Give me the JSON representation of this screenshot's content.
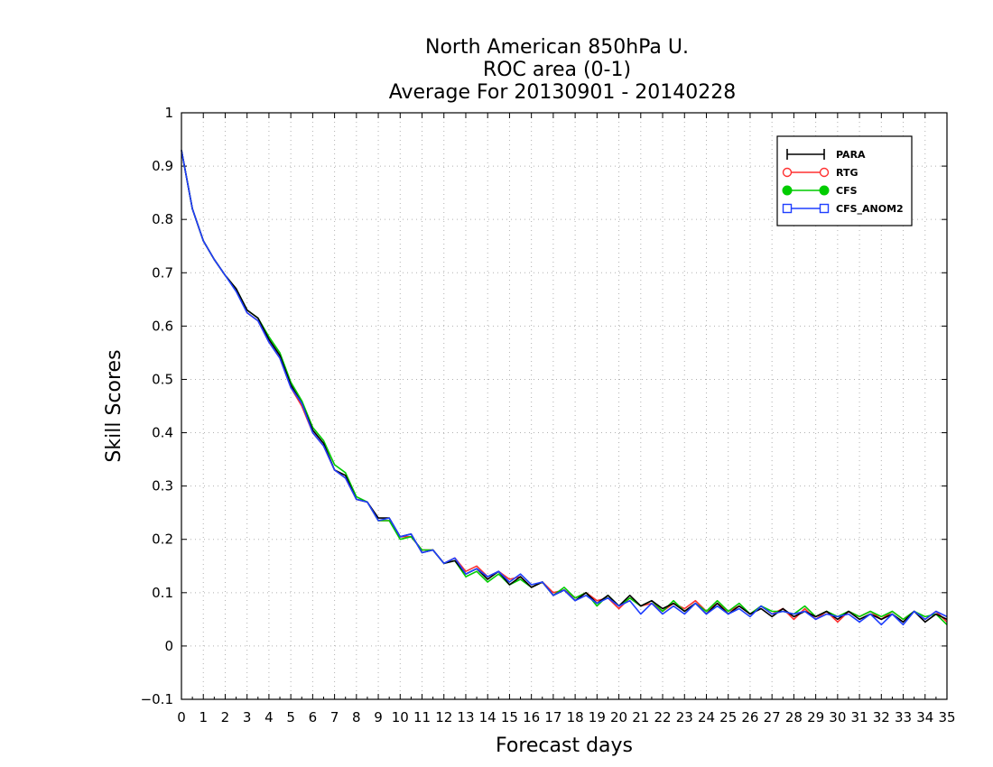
{
  "chart_data": {
    "type": "line",
    "title": [
      "North American 850hPa U.",
      "ROC area (0-1)",
      "Average For 20130901 - 20140228"
    ],
    "xlabel": "Forecast days",
    "ylabel": "Skill Scores",
    "xlim": [
      0,
      35
    ],
    "ylim": [
      -0.1,
      1
    ],
    "xticks": [
      0,
      1,
      2,
      3,
      4,
      5,
      6,
      7,
      8,
      9,
      10,
      11,
      12,
      13,
      14,
      15,
      16,
      17,
      18,
      19,
      20,
      21,
      22,
      23,
      24,
      25,
      26,
      27,
      28,
      29,
      30,
      31,
      32,
      33,
      34,
      35
    ],
    "yticks": [
      -0.1,
      0,
      0.1,
      0.2,
      0.3,
      0.4,
      0.5,
      0.6,
      0.7,
      0.8,
      0.9,
      1
    ],
    "ytick_labels": [
      "−0.1",
      "0",
      "0.1",
      "0.2",
      "0.3",
      "0.4",
      "0.5",
      "0.6",
      "0.7",
      "0.8",
      "0.9",
      "1"
    ],
    "grid": true,
    "legend_position": "top-right",
    "x": [
      0,
      0.5,
      1,
      1.5,
      2,
      2.5,
      3,
      3.5,
      4,
      4.5,
      5,
      5.5,
      6,
      6.5,
      7,
      7.5,
      8,
      8.5,
      9,
      9.5,
      10,
      10.5,
      11,
      11.5,
      12,
      12.5,
      13,
      13.5,
      14,
      14.5,
      15,
      15.5,
      16,
      16.5,
      17,
      17.5,
      18,
      18.5,
      19,
      19.5,
      20,
      20.5,
      21,
      21.5,
      22,
      22.5,
      23,
      23.5,
      24,
      24.5,
      25,
      25.5,
      26,
      26.5,
      27,
      27.5,
      28,
      28.5,
      29,
      29.5,
      30,
      30.5,
      31,
      31.5,
      32,
      32.5,
      33,
      33.5,
      34,
      34.5,
      35
    ],
    "series": [
      {
        "name": "PARA",
        "color": "#000000",
        "marker": "plus",
        "values": [
          0.93,
          0.82,
          0.76,
          0.725,
          0.695,
          0.67,
          0.63,
          0.615,
          0.575,
          0.545,
          0.49,
          0.455,
          0.405,
          0.38,
          0.33,
          0.32,
          0.275,
          0.27,
          0.24,
          0.24,
          0.205,
          0.21,
          0.175,
          0.18,
          0.155,
          0.16,
          0.135,
          0.145,
          0.125,
          0.14,
          0.115,
          0.13,
          0.11,
          0.12,
          0.095,
          0.105,
          0.085,
          0.1,
          0.08,
          0.095,
          0.075,
          0.095,
          0.075,
          0.085,
          0.07,
          0.08,
          0.065,
          0.08,
          0.06,
          0.08,
          0.06,
          0.075,
          0.06,
          0.07,
          0.055,
          0.07,
          0.055,
          0.065,
          0.055,
          0.065,
          0.05,
          0.065,
          0.05,
          0.06,
          0.05,
          0.06,
          0.045,
          0.065,
          0.045,
          0.06,
          0.05
        ]
      },
      {
        "name": "RTG",
        "color": "#ff3030",
        "marker": "circle-open",
        "values": [
          0.93,
          0.82,
          0.76,
          0.725,
          0.695,
          0.67,
          0.625,
          0.61,
          0.57,
          0.54,
          0.485,
          0.45,
          0.4,
          0.375,
          0.33,
          0.315,
          0.275,
          0.27,
          0.235,
          0.235,
          0.205,
          0.205,
          0.18,
          0.18,
          0.155,
          0.165,
          0.14,
          0.15,
          0.13,
          0.14,
          0.125,
          0.13,
          0.11,
          0.12,
          0.1,
          0.105,
          0.09,
          0.1,
          0.085,
          0.09,
          0.07,
          0.09,
          0.075,
          0.08,
          0.065,
          0.08,
          0.07,
          0.085,
          0.065,
          0.08,
          0.065,
          0.075,
          0.06,
          0.075,
          0.06,
          0.07,
          0.05,
          0.07,
          0.05,
          0.065,
          0.045,
          0.065,
          0.055,
          0.065,
          0.05,
          0.065,
          0.05,
          0.065,
          0.05,
          0.065,
          0.045
        ]
      },
      {
        "name": "CFS",
        "color": "#00cc00",
        "marker": "circle-filled",
        "values": [
          0.93,
          0.82,
          0.76,
          0.725,
          0.695,
          0.67,
          0.63,
          0.615,
          0.58,
          0.55,
          0.495,
          0.46,
          0.41,
          0.385,
          0.34,
          0.325,
          0.28,
          0.27,
          0.235,
          0.235,
          0.2,
          0.205,
          0.18,
          0.18,
          0.155,
          0.16,
          0.13,
          0.14,
          0.12,
          0.135,
          0.115,
          0.125,
          0.11,
          0.12,
          0.095,
          0.11,
          0.09,
          0.1,
          0.075,
          0.095,
          0.075,
          0.09,
          0.075,
          0.085,
          0.065,
          0.085,
          0.065,
          0.08,
          0.065,
          0.085,
          0.065,
          0.08,
          0.06,
          0.075,
          0.065,
          0.065,
          0.06,
          0.075,
          0.055,
          0.065,
          0.055,
          0.065,
          0.055,
          0.065,
          0.055,
          0.065,
          0.05,
          0.065,
          0.055,
          0.06,
          0.04
        ]
      },
      {
        "name": "CFS_ANOM2",
        "color": "#1f3fff",
        "marker": "square-open",
        "values": [
          0.93,
          0.82,
          0.76,
          0.725,
          0.695,
          0.665,
          0.625,
          0.61,
          0.57,
          0.54,
          0.485,
          0.455,
          0.4,
          0.375,
          0.33,
          0.315,
          0.275,
          0.27,
          0.235,
          0.24,
          0.205,
          0.21,
          0.175,
          0.18,
          0.155,
          0.165,
          0.135,
          0.145,
          0.13,
          0.14,
          0.12,
          0.135,
          0.115,
          0.12,
          0.095,
          0.105,
          0.085,
          0.095,
          0.08,
          0.09,
          0.075,
          0.085,
          0.06,
          0.08,
          0.06,
          0.075,
          0.06,
          0.08,
          0.06,
          0.075,
          0.06,
          0.07,
          0.055,
          0.075,
          0.06,
          0.065,
          0.06,
          0.065,
          0.05,
          0.06,
          0.055,
          0.06,
          0.045,
          0.06,
          0.04,
          0.06,
          0.04,
          0.065,
          0.05,
          0.065,
          0.055
        ]
      }
    ]
  }
}
